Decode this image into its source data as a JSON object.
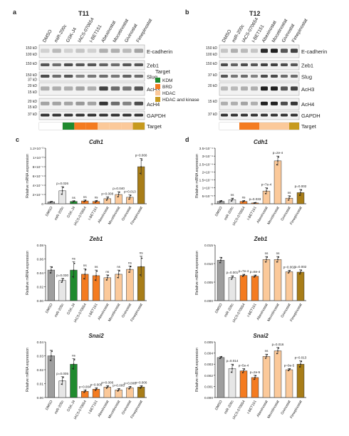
{
  "panels": {
    "a": {
      "letter": "a",
      "title": "T11",
      "lanes": [
        "DMSO",
        "miR-200c",
        "GSK-J4",
        "IACS-070654",
        "I-BET151",
        "Abexinostat",
        "Mocetinostat",
        "Givinostat",
        "Fimepinostat"
      ],
      "blots": [
        {
          "markers": [
            "150 kD",
            "100 kD"
          ],
          "protein": "E-cadherin"
        },
        {
          "markers": [
            "150 kD"
          ],
          "protein": "Zeb1"
        },
        {
          "markers": [
            "150 kD",
            "37 kD"
          ],
          "protein": "Slug"
        },
        {
          "markers": [
            "20 kD",
            "15 kD"
          ],
          "protein": "AcH3"
        },
        {
          "markers": [
            "20 kD",
            "15 kD"
          ],
          "protein": "AcH4"
        },
        {
          "markers": [
            "37 kD"
          ],
          "protein": "GAPDH"
        }
      ],
      "target_label": "Target",
      "target_colors": [
        "#ffffff",
        "#ffffff",
        "#1f8a2e",
        "#f47b20",
        "#f47b20",
        "#fbc99a",
        "#fbc99a",
        "#fbc99a",
        "#c79a1e"
      ]
    },
    "b": {
      "letter": "b",
      "title": "T12",
      "lanes": [
        "DMSO",
        "miR-200c",
        "IACS-070654",
        "I-BET151",
        "Abexinostat",
        "Mocetinostat",
        "Givinostat",
        "Fimepinostat"
      ],
      "blots": [
        {
          "markers": [
            "150 kD",
            "100 kD"
          ],
          "protein": "E-cadherin"
        },
        {
          "markers": [
            "150 kD"
          ],
          "protein": "Zeb1"
        },
        {
          "markers": [
            "37 kD"
          ],
          "protein": "Slug"
        },
        {
          "markers": [
            "20 kD"
          ],
          "protein": "AcH3"
        },
        {
          "markers": [
            "15 kD"
          ],
          "protein": "AcH4"
        },
        {
          "markers": [
            "37 kD"
          ],
          "protein": "GAPDH"
        }
      ],
      "target_label": "Target",
      "target_colors": [
        "#ffffff",
        "#ffffff",
        "#f47b20",
        "#f47b20",
        "#fbc99a",
        "#fbc99a",
        "#fbc99a",
        "#c79a1e"
      ]
    }
  },
  "legend": {
    "title": "Target",
    "items": [
      {
        "label": "KDM",
        "color": "#1f8a2e"
      },
      {
        "label": "BRD",
        "color": "#f47b20"
      },
      {
        "label": "HDAC",
        "color": "#fbc99a"
      },
      {
        "label": "HDAC and kinase",
        "color": "#c79a1e"
      }
    ]
  },
  "chart_data": [
    {
      "type": "bar",
      "panel": "c",
      "title": "Cdh1",
      "ylabel": "Relative mRNA expression",
      "categories": [
        "DMSO",
        "miR-200c",
        "GSK-J4",
        "IACS-070654",
        "I-BET151",
        "Abexinostat",
        "Mocetinostat",
        "Givinostat",
        "Fimepinostat"
      ],
      "values": [
        4e-05,
        0.00028,
        5e-05,
        6e-05,
        5e-05,
        0.00011,
        0.0002,
        0.00014,
        0.0008
      ],
      "errors": [
        1e-05,
        9e-05,
        1.5e-05,
        2e-05,
        2e-05,
        4e-05,
        6e-05,
        5e-05,
        0.00018
      ],
      "annotations": [
        "",
        "p=0.026",
        "ns",
        "ns",
        "ns",
        "p=0.008",
        "p=0.040",
        "p=0.013",
        "p=0.066"
      ],
      "ylim": [
        0,
        0.0012
      ],
      "yticks": [
        "0",
        "2×10⁻⁴",
        "4×10⁻⁴",
        "6×10⁻⁴",
        "8×10⁻⁴",
        "1×10⁻³",
        "1.2×10⁻³"
      ],
      "colors": [
        "#9e9e9e",
        "#e6e6e6",
        "#1f8a2e",
        "#f47b20",
        "#f47b20",
        "#fbc99a",
        "#fbc99a",
        "#fbc99a",
        "#a87d18"
      ]
    },
    {
      "type": "bar",
      "panel": "d",
      "title": "Cdh1",
      "ylabel": "Relative mRNA expression",
      "categories": [
        "DMSO",
        "miR-200c",
        "IACS-070654",
        "I-BET151",
        "Abexinostat",
        "Mocetinostat",
        "Givinostat",
        "Fimepinostat"
      ],
      "values": [
        1.5e-05,
        2.5e-05,
        1.5e-05,
        5e-06,
        8e-05,
        0.00027,
        3.5e-05,
        7e-05
      ],
      "errors": [
        5e-06,
        1e-05,
        5e-06,
        3e-06,
        2e-05,
        3e-05,
        1.5e-05,
        2e-05
      ],
      "annotations": [
        "",
        "ns",
        "ns",
        "p=0.033",
        "p=7e-4",
        "p=2e-4",
        "ns",
        "p=0.002"
      ],
      "ylim": [
        0,
        0.00035
      ],
      "yticks": [
        "0",
        "5×10⁻⁵",
        "1×10⁻⁴",
        "1.5×10⁻⁴",
        "2×10⁻⁴",
        "2.5×10⁻⁴",
        "3×10⁻⁴",
        "3.5×10⁻⁴"
      ],
      "colors": [
        "#9e9e9e",
        "#e6e6e6",
        "#f47b20",
        "#f47b20",
        "#fbc99a",
        "#fbc99a",
        "#fbc99a",
        "#a87d18"
      ]
    },
    {
      "type": "bar",
      "panel": "c2",
      "title": "Zeb1",
      "ylabel": "Relative mRNA expression",
      "categories": [
        "DMSO",
        "miR-200c",
        "GSK-J4",
        "IACS-070654",
        "I-BET151",
        "Abexinostat",
        "Mocetinostat",
        "Givinostat",
        "Fimepinostat"
      ],
      "values": [
        0.044,
        0.029,
        0.044,
        0.038,
        0.036,
        0.033,
        0.038,
        0.045,
        0.049
      ],
      "errors": [
        0.005,
        0.003,
        0.012,
        0.008,
        0.008,
        0.004,
        0.006,
        0.005,
        0.015
      ],
      "annotations": [
        "",
        "p=0.030",
        "ns",
        "ns",
        "ns",
        "ns",
        "ns",
        "ns",
        "ns"
      ],
      "ylim": [
        0,
        0.08
      ],
      "yticks": [
        "0.00",
        "0.02",
        "0.04",
        "0.06",
        "0.08"
      ],
      "colors": [
        "#9e9e9e",
        "#e6e6e6",
        "#1f8a2e",
        "#f47b20",
        "#f47b20",
        "#fbc99a",
        "#fbc99a",
        "#fbc99a",
        "#a87d18"
      ]
    },
    {
      "type": "bar",
      "panel": "d2",
      "title": "Zeb1",
      "ylabel": "Relative mRNA expression",
      "categories": [
        "DMSO",
        "miR-200c",
        "IACS-070654",
        "I-BET151",
        "Abexinostat",
        "Mocetinostat",
        "Givinostat",
        "Fimepinostat"
      ],
      "values": [
        0.0109,
        0.0062,
        0.0068,
        0.0066,
        0.0111,
        0.0111,
        0.0078,
        0.0077
      ],
      "errors": [
        0.0008,
        0.0005,
        0.0003,
        0.0003,
        0.0008,
        0.0008,
        0.0004,
        0.0006
      ],
      "annotations": [
        "",
        "p=0.001",
        "p=7e-4",
        "p=8e-4",
        "ns",
        "ns",
        "p=0.002",
        "p=0.002"
      ],
      "ylim": [
        0,
        0.015
      ],
      "yticks": [
        "0.000",
        "0.005",
        "0.010",
        "0.015"
      ],
      "colors": [
        "#9e9e9e",
        "#e6e6e6",
        "#f47b20",
        "#f47b20",
        "#fbc99a",
        "#fbc99a",
        "#fbc99a",
        "#a87d18"
      ]
    },
    {
      "type": "bar",
      "panel": "c3",
      "title": "Snai2",
      "ylabel": "Relative mRNA expression",
      "categories": [
        "DMSO",
        "miR-200c",
        "GSK-J4",
        "IACS-070654",
        "I-BET151",
        "Abexinostat",
        "Mocetinostat",
        "Givinostat",
        "Fimepinostat"
      ],
      "values": [
        0.03,
        0.012,
        0.024,
        0.0045,
        0.006,
        0.0075,
        0.0055,
        0.007,
        0.0075
      ],
      "errors": [
        0.004,
        0.003,
        0.004,
        0.001,
        0.001,
        0.001,
        0.001,
        0.001,
        0.001
      ],
      "annotations": [
        "",
        "p=0.005",
        "ns",
        "p=0.004",
        "p=0.005",
        "p=0.006",
        "p=0.005",
        "p=0.006",
        "p=0.006"
      ],
      "ylim": [
        0,
        0.04
      ],
      "yticks": [
        "0.00",
        "0.01",
        "0.02",
        "0.03",
        "0.04"
      ],
      "colors": [
        "#9e9e9e",
        "#e6e6e6",
        "#1f8a2e",
        "#f47b20",
        "#f47b20",
        "#fbc99a",
        "#fbc99a",
        "#fbc99a",
        "#a87d18"
      ]
    },
    {
      "type": "bar",
      "panel": "d3",
      "title": "Snai2",
      "ylabel": "Relative mRNA expression",
      "categories": [
        "DMSO",
        "miR-200c",
        "IACS-070654",
        "I-BET151",
        "Abexinostat",
        "Mocetinostat",
        "Givinostat",
        "Fimepinostat"
      ],
      "values": [
        0.0036,
        0.0026,
        0.0024,
        0.0018,
        0.0037,
        0.0042,
        0.0025,
        0.003
      ],
      "errors": [
        0.0001,
        0.0004,
        0.0002,
        0.0002,
        0.0002,
        0.0003,
        0.0001,
        0.0003
      ],
      "annotations": [
        "",
        "p=0.014",
        "p=5e-4",
        "p=2e-5",
        "ns",
        "p=0.016",
        "p=9e-5",
        "p=0.013"
      ],
      "ylim": [
        0,
        0.005
      ],
      "yticks": [
        "0.000",
        "0.001",
        "0.002",
        "0.003",
        "0.004",
        "0.005"
      ],
      "colors": [
        "#9e9e9e",
        "#e6e6e6",
        "#f47b20",
        "#f47b20",
        "#fbc99a",
        "#fbc99a",
        "#fbc99a",
        "#a87d18"
      ]
    }
  ],
  "section_letters": {
    "c": "c",
    "d": "d"
  }
}
